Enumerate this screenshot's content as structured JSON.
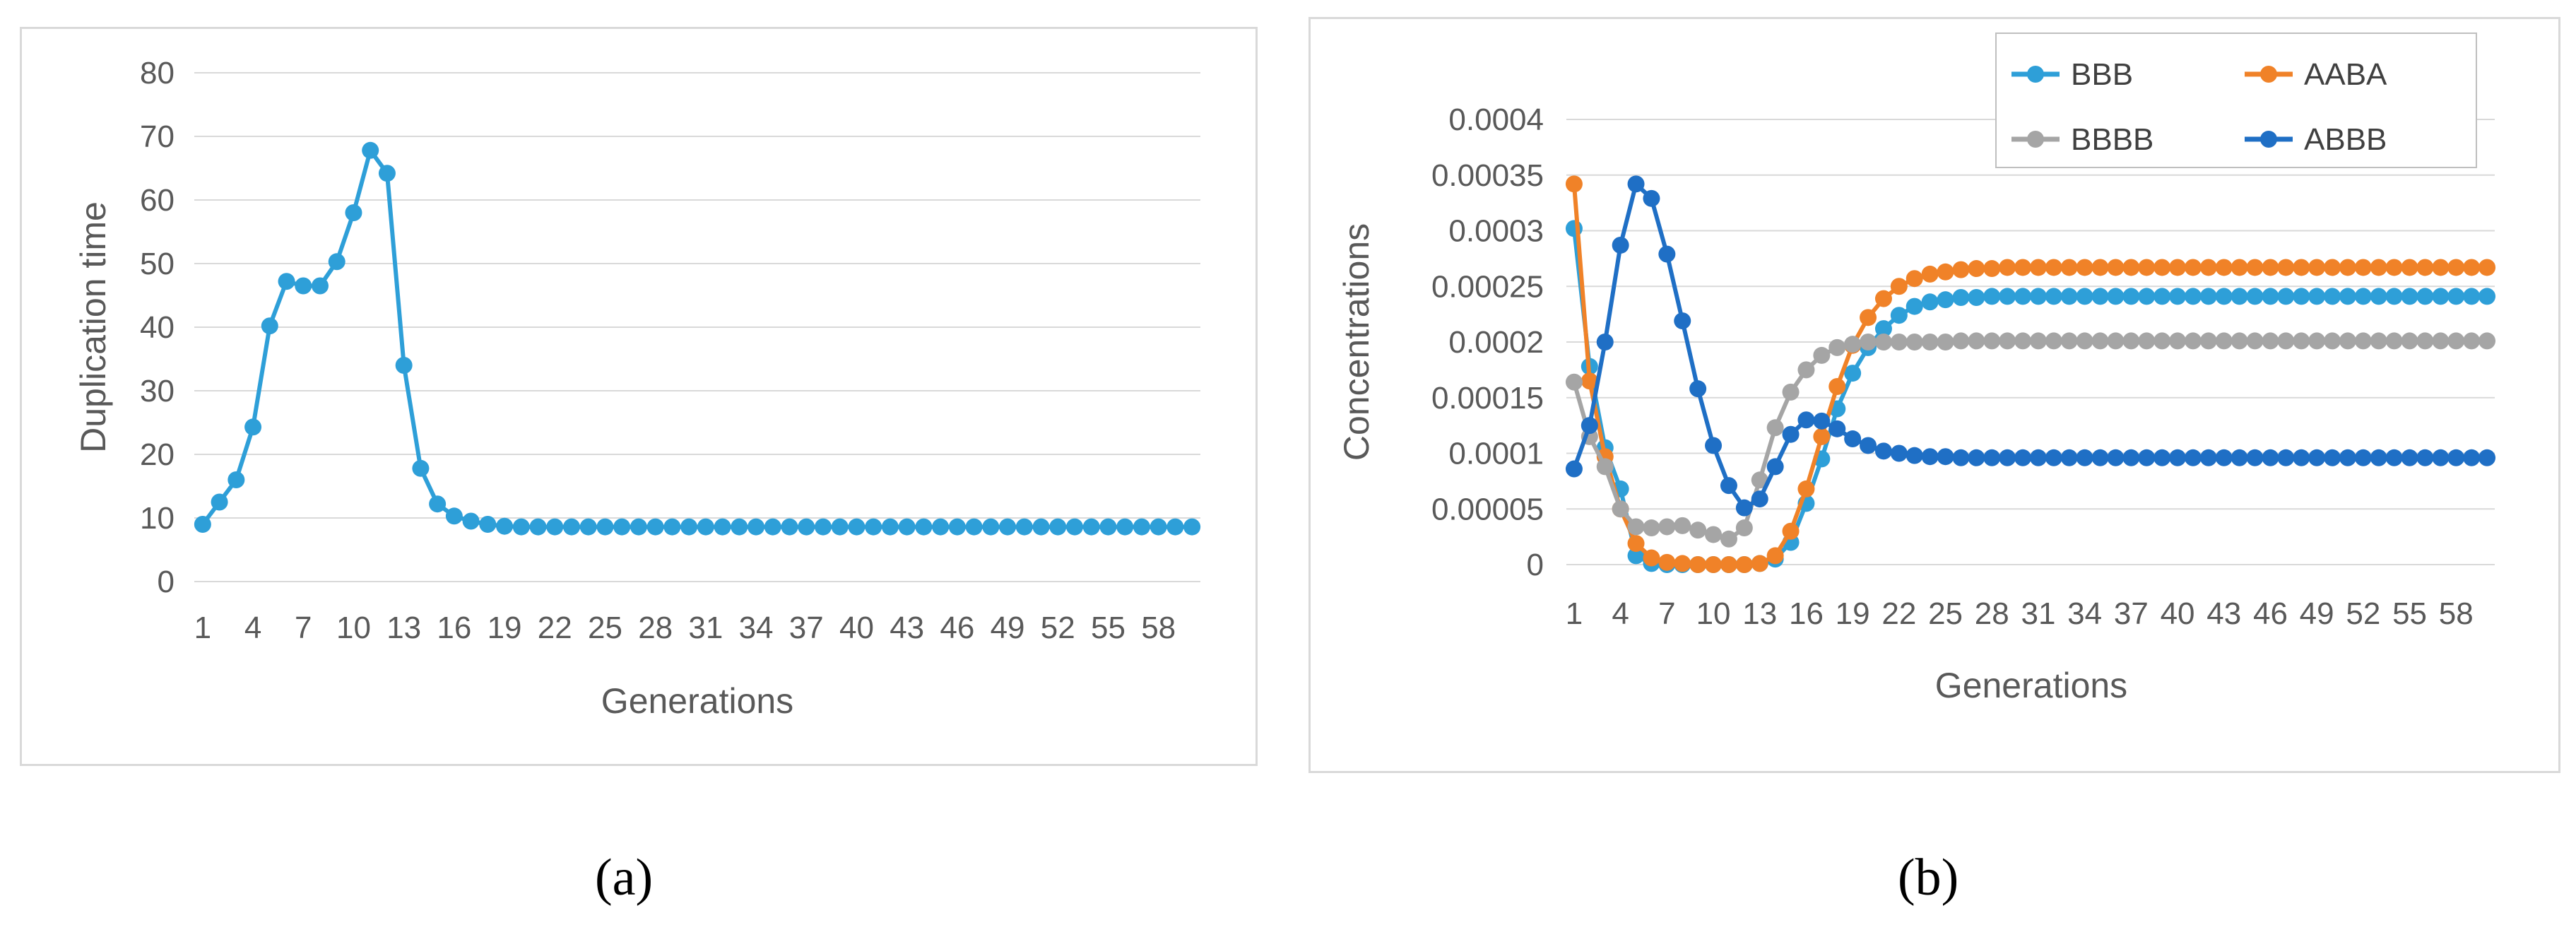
{
  "captions": {
    "a": "(a)",
    "b": "(b)"
  },
  "chart_data": [
    {
      "type": "line",
      "title": "",
      "xlabel": "Generations",
      "ylabel": "Duplication time",
      "ylim": [
        0,
        80
      ],
      "yticks": [
        "0",
        "10",
        "20",
        "30",
        "40",
        "50",
        "60",
        "70",
        "80"
      ],
      "x_tick_labels": [
        "1",
        "4",
        "7",
        "10",
        "13",
        "16",
        "19",
        "22",
        "25",
        "28",
        "31",
        "34",
        "37",
        "40",
        "43",
        "46",
        "49",
        "52",
        "55",
        "58"
      ],
      "x": [
        1,
        2,
        3,
        4,
        5,
        6,
        7,
        8,
        9,
        10,
        11,
        12,
        13,
        14,
        15,
        16,
        17,
        18,
        19,
        20,
        21,
        22,
        23,
        24,
        25,
        26,
        27,
        28,
        29,
        30,
        31,
        32,
        33,
        34,
        35,
        36,
        37,
        38,
        39,
        40,
        41,
        42,
        43,
        44,
        45,
        46,
        47,
        48,
        49,
        50,
        51,
        52,
        53,
        54,
        55,
        56,
        57,
        58,
        59,
        60
      ],
      "grid": true,
      "legend": "none",
      "series": [
        {
          "color": "#2e9fd8",
          "values": [
            9,
            12.5,
            16,
            24.3,
            40.2,
            47.2,
            46.5,
            46.5,
            50.3,
            58,
            67.8,
            64.2,
            34,
            17.8,
            12.2,
            10.3,
            9.5,
            9,
            8.7,
            8.6,
            8.6,
            8.6,
            8.6,
            8.6,
            8.6,
            8.6,
            8.6,
            8.6,
            8.6,
            8.6,
            8.6,
            8.6,
            8.6,
            8.6,
            8.6,
            8.6,
            8.6,
            8.6,
            8.6,
            8.6,
            8.6,
            8.6,
            8.6,
            8.6,
            8.6,
            8.6,
            8.6,
            8.6,
            8.6,
            8.6,
            8.6,
            8.6,
            8.6,
            8.6,
            8.6,
            8.6,
            8.6,
            8.6,
            8.6,
            8.6
          ]
        }
      ]
    },
    {
      "type": "line",
      "title": "",
      "xlabel": "Generations",
      "ylabel": "Concentrations",
      "ylim": [
        0,
        0.0004
      ],
      "yticks": [
        "0",
        "0.00005",
        "0.0001",
        "0.00015",
        "0.0002",
        "0.00025",
        "0.0003",
        "0.00035",
        "0.0004"
      ],
      "x_tick_labels": [
        "1",
        "4",
        "7",
        "10",
        "13",
        "16",
        "19",
        "22",
        "25",
        "28",
        "31",
        "34",
        "37",
        "40",
        "43",
        "46",
        "49",
        "52",
        "55",
        "58"
      ],
      "x": [
        1,
        2,
        3,
        4,
        5,
        6,
        7,
        8,
        9,
        10,
        11,
        12,
        13,
        14,
        15,
        16,
        17,
        18,
        19,
        20,
        21,
        22,
        23,
        24,
        25,
        26,
        27,
        28,
        29,
        30,
        31,
        32,
        33,
        34,
        35,
        36,
        37,
        38,
        39,
        40,
        41,
        42,
        43,
        44,
        45,
        46,
        47,
        48,
        49,
        50,
        51,
        52,
        53,
        54,
        55,
        56,
        57,
        58,
        59,
        60
      ],
      "grid": true,
      "legend": "top-right",
      "series": [
        {
          "name": "BBB",
          "color": "#2e9fd8",
          "values": [
            0.000302,
            0.000178,
            0.000105,
            6.8e-05,
            8e-06,
            1e-06,
            0,
            0,
            0,
            0,
            0,
            0,
            1e-06,
            5e-06,
            2e-05,
            5.5e-05,
            9.5e-05,
            0.00014,
            0.000172,
            0.000195,
            0.000212,
            0.000224,
            0.000232,
            0.000236,
            0.000238,
            0.00024,
            0.00024,
            0.000241,
            0.000241,
            0.000241,
            0.000241,
            0.000241,
            0.000241,
            0.000241,
            0.000241,
            0.000241,
            0.000241,
            0.000241,
            0.000241,
            0.000241,
            0.000241,
            0.000241,
            0.000241,
            0.000241,
            0.000241,
            0.000241,
            0.000241,
            0.000241,
            0.000241,
            0.000241,
            0.000241,
            0.000241,
            0.000241,
            0.000241,
            0.000241,
            0.000241,
            0.000241,
            0.000241,
            0.000241,
            0.000241
          ]
        },
        {
          "name": "AABA",
          "color": "#f08228",
          "values": [
            0.000342,
            0.000165,
            9.7e-05,
            5e-05,
            1.9e-05,
            6e-06,
            2e-06,
            1e-06,
            0,
            0,
            0,
            0,
            1e-06,
            8e-06,
            3e-05,
            6.8e-05,
            0.000115,
            0.00016,
            0.000197,
            0.000222,
            0.000239,
            0.00025,
            0.000257,
            0.000261,
            0.000263,
            0.000265,
            0.000266,
            0.000266,
            0.000267,
            0.000267,
            0.000267,
            0.000267,
            0.000267,
            0.000267,
            0.000267,
            0.000267,
            0.000267,
            0.000267,
            0.000267,
            0.000267,
            0.000267,
            0.000267,
            0.000267,
            0.000267,
            0.000267,
            0.000267,
            0.000267,
            0.000267,
            0.000267,
            0.000267,
            0.000267,
            0.000267,
            0.000267,
            0.000267,
            0.000267,
            0.000267,
            0.000267,
            0.000267,
            0.000267,
            0.000267
          ]
        },
        {
          "name": "BBBB",
          "color": "#a5a5a5",
          "values": [
            0.000164,
            0.000115,
            8.8e-05,
            5e-05,
            3.4e-05,
            3.3e-05,
            3.4e-05,
            3.5e-05,
            3.1e-05,
            2.7e-05,
            2.3e-05,
            3.3e-05,
            7.6e-05,
            0.000123,
            0.000155,
            0.000175,
            0.000188,
            0.000195,
            0.000198,
            0.0002,
            0.0002,
            0.0002,
            0.0002,
            0.0002,
            0.0002,
            0.000201,
            0.000201,
            0.000201,
            0.000201,
            0.000201,
            0.000201,
            0.000201,
            0.000201,
            0.000201,
            0.000201,
            0.000201,
            0.000201,
            0.000201,
            0.000201,
            0.000201,
            0.000201,
            0.000201,
            0.000201,
            0.000201,
            0.000201,
            0.000201,
            0.000201,
            0.000201,
            0.000201,
            0.000201,
            0.000201,
            0.000201,
            0.000201,
            0.000201,
            0.000201,
            0.000201,
            0.000201,
            0.000201,
            0.000201,
            0.000201
          ]
        },
        {
          "name": "ABBB",
          "color": "#1f6fc5",
          "values": [
            8.6e-05,
            0.000125,
            0.0002,
            0.000287,
            0.000342,
            0.000329,
            0.000279,
            0.000219,
            0.000158,
            0.000107,
            7.1e-05,
            5.1e-05,
            5.9e-05,
            8.8e-05,
            0.000117,
            0.00013,
            0.000129,
            0.000122,
            0.000113,
            0.000107,
            0.000102,
            0.0001,
            9.8e-05,
            9.7e-05,
            9.7e-05,
            9.6e-05,
            9.6e-05,
            9.6e-05,
            9.6e-05,
            9.6e-05,
            9.6e-05,
            9.6e-05,
            9.6e-05,
            9.6e-05,
            9.6e-05,
            9.6e-05,
            9.6e-05,
            9.6e-05,
            9.6e-05,
            9.6e-05,
            9.6e-05,
            9.6e-05,
            9.6e-05,
            9.6e-05,
            9.6e-05,
            9.6e-05,
            9.6e-05,
            9.6e-05,
            9.6e-05,
            9.6e-05,
            9.6e-05,
            9.6e-05,
            9.6e-05,
            9.6e-05,
            9.6e-05,
            9.6e-05,
            9.6e-05,
            9.6e-05,
            9.6e-05,
            9.6e-05
          ]
        }
      ]
    }
  ]
}
